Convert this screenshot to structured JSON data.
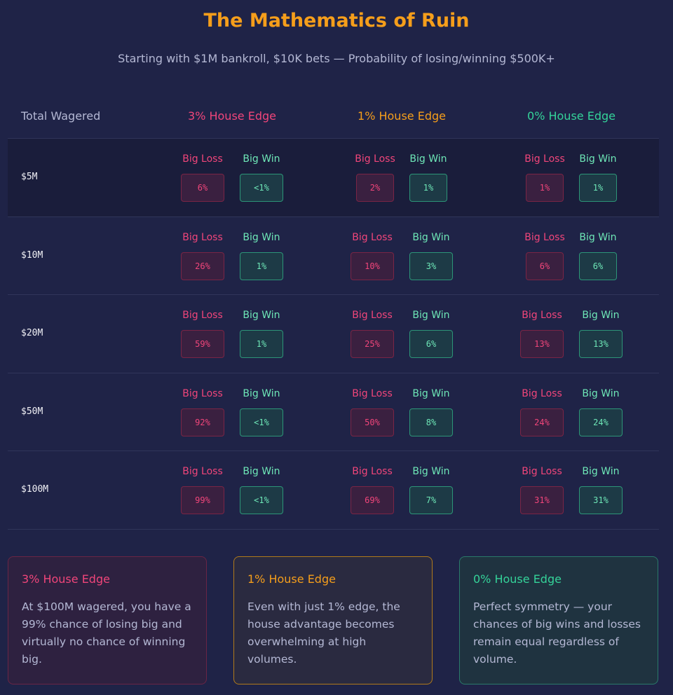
{
  "header": {
    "title": "The Mathematics of Ruin",
    "subtitle": "Starting with $1M bankroll, $10K bets — Probability of losing/winning $500K+"
  },
  "table": {
    "columns": [
      "Total Wagered",
      "3% House Edge",
      "1% House Edge",
      "0% House Edge"
    ],
    "loss_label": "Big Loss",
    "win_label": "Big Win",
    "rows": [
      {
        "wagered": "$5M",
        "cells": [
          [
            "6%",
            "<1%"
          ],
          [
            "2%",
            "1%"
          ],
          [
            "1%",
            "1%"
          ]
        ]
      },
      {
        "wagered": "$10M",
        "cells": [
          [
            "26%",
            "1%"
          ],
          [
            "10%",
            "3%"
          ],
          [
            "6%",
            "6%"
          ]
        ]
      },
      {
        "wagered": "$20M",
        "cells": [
          [
            "59%",
            "1%"
          ],
          [
            "25%",
            "6%"
          ],
          [
            "13%",
            "13%"
          ]
        ]
      },
      {
        "wagered": "$50M",
        "cells": [
          [
            "92%",
            "<1%"
          ],
          [
            "50%",
            "8%"
          ],
          [
            "24%",
            "24%"
          ]
        ]
      },
      {
        "wagered": "$100M",
        "cells": [
          [
            "99%",
            "<1%"
          ],
          [
            "69%",
            "7%"
          ],
          [
            "31%",
            "31%"
          ]
        ]
      }
    ]
  },
  "cards": [
    {
      "title": "3% House Edge",
      "text": "At $100M wagered, you have a 99% chance of losing big and virtually no chance of winning big."
    },
    {
      "title": "1% House Edge",
      "text": "Even with just 1% edge, the house advantage becomes overwhelming at high volumes."
    },
    {
      "title": "0% House Edge",
      "text": "Perfect symmetry — your chances of big wins and losses remain equal regardless of volume."
    }
  ]
}
